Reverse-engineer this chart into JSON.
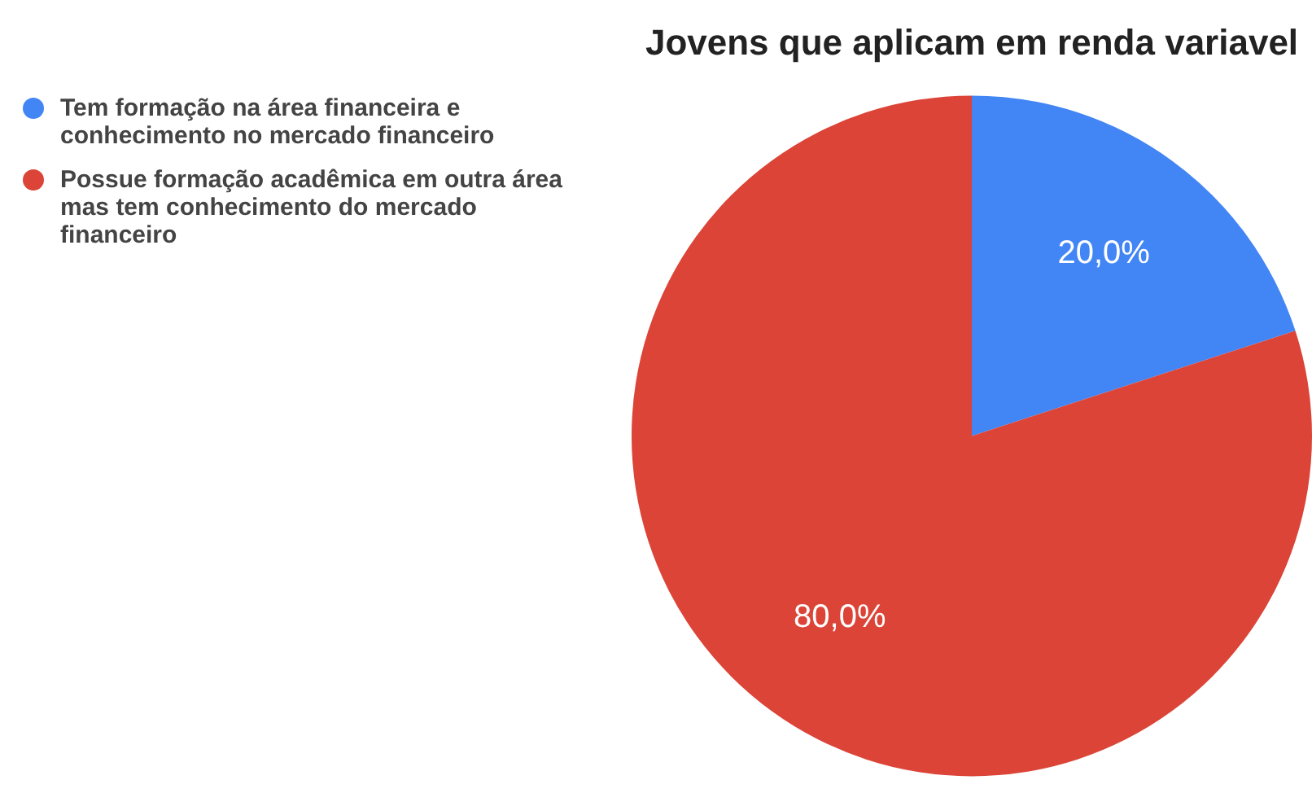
{
  "chart_data": {
    "type": "pie",
    "title": "Jovens que aplicam em renda variavel",
    "categories": [
      "Tem formação na área financeira e conhecimento no mercado financeiro",
      "Possue formação acadêmica em outra área mas tem conhecimento do mercado financeiro"
    ],
    "values": [
      20,
      80
    ],
    "colors": [
      "#4285f4",
      "#db4437"
    ],
    "value_labels": [
      "20,0%",
      "80,0%"
    ],
    "legend": "top left"
  }
}
